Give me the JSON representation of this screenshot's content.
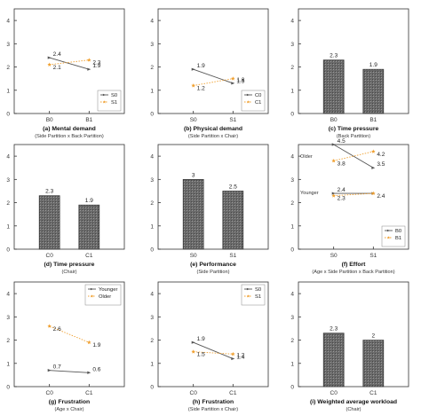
{
  "chart_data": [
    {
      "type": "line",
      "title": "(a) Mental demand",
      "subtitle": "(Side Partition x Back Partition)",
      "categories": [
        "B0",
        "B1"
      ],
      "ylim": [
        0,
        4.5
      ],
      "yticks": [
        0,
        1,
        2,
        3,
        4
      ],
      "legend": "bottom-right",
      "series": [
        {
          "name": "S0",
          "values": [
            2.4,
            1.9
          ],
          "labels": [
            "2.4",
            "1.9"
          ],
          "color": "#555555",
          "dash": "solid",
          "marker": "arrow"
        },
        {
          "name": "S1",
          "values": [
            2.1,
            2.3
          ],
          "labels": [
            "2.1",
            "2.3"
          ],
          "color": "#f0a030",
          "dash": "dot",
          "marker": "star"
        }
      ]
    },
    {
      "type": "line",
      "title": "(b) Physical demand",
      "subtitle": "(Side Partition x Chair)",
      "categories": [
        "S0",
        "S1"
      ],
      "ylim": [
        0,
        4.5
      ],
      "yticks": [
        0,
        1,
        2,
        3,
        4
      ],
      "legend": "bottom-right",
      "series": [
        {
          "name": "C0",
          "values": [
            1.9,
            1.3
          ],
          "labels": [
            "1.9",
            "1.3"
          ],
          "color": "#555555",
          "dash": "solid",
          "marker": "arrow"
        },
        {
          "name": "C1",
          "values": [
            1.2,
            1.5
          ],
          "labels": [
            "1.2",
            "1.5"
          ],
          "color": "#f0a030",
          "dash": "dot",
          "marker": "star"
        }
      ]
    },
    {
      "type": "bar",
      "title": "(c) Time pressure",
      "subtitle": "(Back Partition)",
      "categories": [
        "B0",
        "B1"
      ],
      "values": [
        2.3,
        1.9
      ],
      "labels": [
        "2.3",
        "1.9"
      ],
      "ylim": [
        0,
        4.5
      ],
      "yticks": [
        0,
        1,
        2,
        3,
        4
      ]
    },
    {
      "type": "bar",
      "title": "(d) Time pressure",
      "subtitle": "(Chair)",
      "categories": [
        "C0",
        "C1"
      ],
      "values": [
        2.3,
        1.9
      ],
      "labels": [
        "2.3",
        "1.9"
      ],
      "ylim": [
        0,
        4.5
      ],
      "yticks": [
        0,
        1,
        2,
        3,
        4
      ]
    },
    {
      "type": "bar",
      "title": "(e) Performance",
      "subtitle": "(Side Partition)",
      "categories": [
        "S0",
        "S1"
      ],
      "values": [
        3,
        2.5
      ],
      "labels": [
        "3",
        "2.5"
      ],
      "ylim": [
        0,
        4.5
      ],
      "yticks": [
        0,
        1,
        2,
        3,
        4
      ]
    },
    {
      "type": "line",
      "title": "(f) Effort",
      "subtitle": "(Age x Side Partition x Back Partition)",
      "categories": [
        "S0",
        "S1"
      ],
      "ylim": [
        0,
        4.5
      ],
      "yticks": [
        0,
        1,
        2,
        3,
        4
      ],
      "legend": "bottom-right",
      "annotations": [
        {
          "text": "Older",
          "y": 4.0
        },
        {
          "text": "Younger",
          "y": 2.45
        }
      ],
      "series": [
        {
          "name": "B0",
          "values": [
            4.5,
            3.5
          ],
          "labels": [
            "4.5",
            "3.5"
          ],
          "color": "#555555",
          "dash": "solid",
          "marker": "arrow"
        },
        {
          "name": "B1",
          "values": [
            3.8,
            4.2
          ],
          "labels": [
            "3.8",
            "4.2"
          ],
          "color": "#f0a030",
          "dash": "dot",
          "marker": "star"
        },
        {
          "name": "",
          "values": [
            2.4,
            2.4
          ],
          "labels": [
            "2.4",
            ""
          ],
          "color": "#555555",
          "dash": "solid",
          "marker": "arrow"
        },
        {
          "name": "",
          "values": [
            2.3,
            2.4
          ],
          "labels": [
            "2.3",
            "2.4"
          ],
          "color": "#f0a030",
          "dash": "dot",
          "marker": "star"
        }
      ]
    },
    {
      "type": "line",
      "title": "(g) Frustration",
      "subtitle": "(Age x Chair)",
      "categories": [
        "C0",
        "C1"
      ],
      "ylim": [
        0,
        4.5
      ],
      "yticks": [
        0,
        1,
        2,
        3,
        4
      ],
      "legend": "top-right",
      "series": [
        {
          "name": "Younger",
          "values": [
            0.7,
            0.6
          ],
          "labels": [
            "0.7",
            "0.6"
          ],
          "color": "#555555",
          "dash": "solid",
          "marker": "arrow"
        },
        {
          "name": "Older",
          "values": [
            2.6,
            1.9
          ],
          "labels": [
            "2.6",
            "1.9"
          ],
          "color": "#f0a030",
          "dash": "dot",
          "marker": "star"
        }
      ]
    },
    {
      "type": "line",
      "title": "(h) Frustration",
      "subtitle": "(Side Partition x Chair)",
      "categories": [
        "C0",
        "C1"
      ],
      "ylim": [
        0,
        4.5
      ],
      "yticks": [
        0,
        1,
        2,
        3,
        4
      ],
      "legend": "top-right",
      "series": [
        {
          "name": "S0",
          "values": [
            1.9,
            1.2
          ],
          "labels": [
            "1.9",
            "1.2"
          ],
          "color": "#555555",
          "dash": "solid",
          "marker": "arrow"
        },
        {
          "name": "S1",
          "values": [
            1.5,
            1.4
          ],
          "labels": [
            "1.5",
            "1.4"
          ],
          "color": "#f0a030",
          "dash": "dot",
          "marker": "star"
        }
      ]
    },
    {
      "type": "bar",
      "title": "(i) Weighted average workload",
      "subtitle": "(Chair)",
      "categories": [
        "C0",
        "C1"
      ],
      "values": [
        2.3,
        2
      ],
      "labels": [
        "2.3",
        "2"
      ],
      "ylim": [
        0,
        4.5
      ],
      "yticks": [
        0,
        1,
        2,
        3,
        4
      ]
    }
  ]
}
